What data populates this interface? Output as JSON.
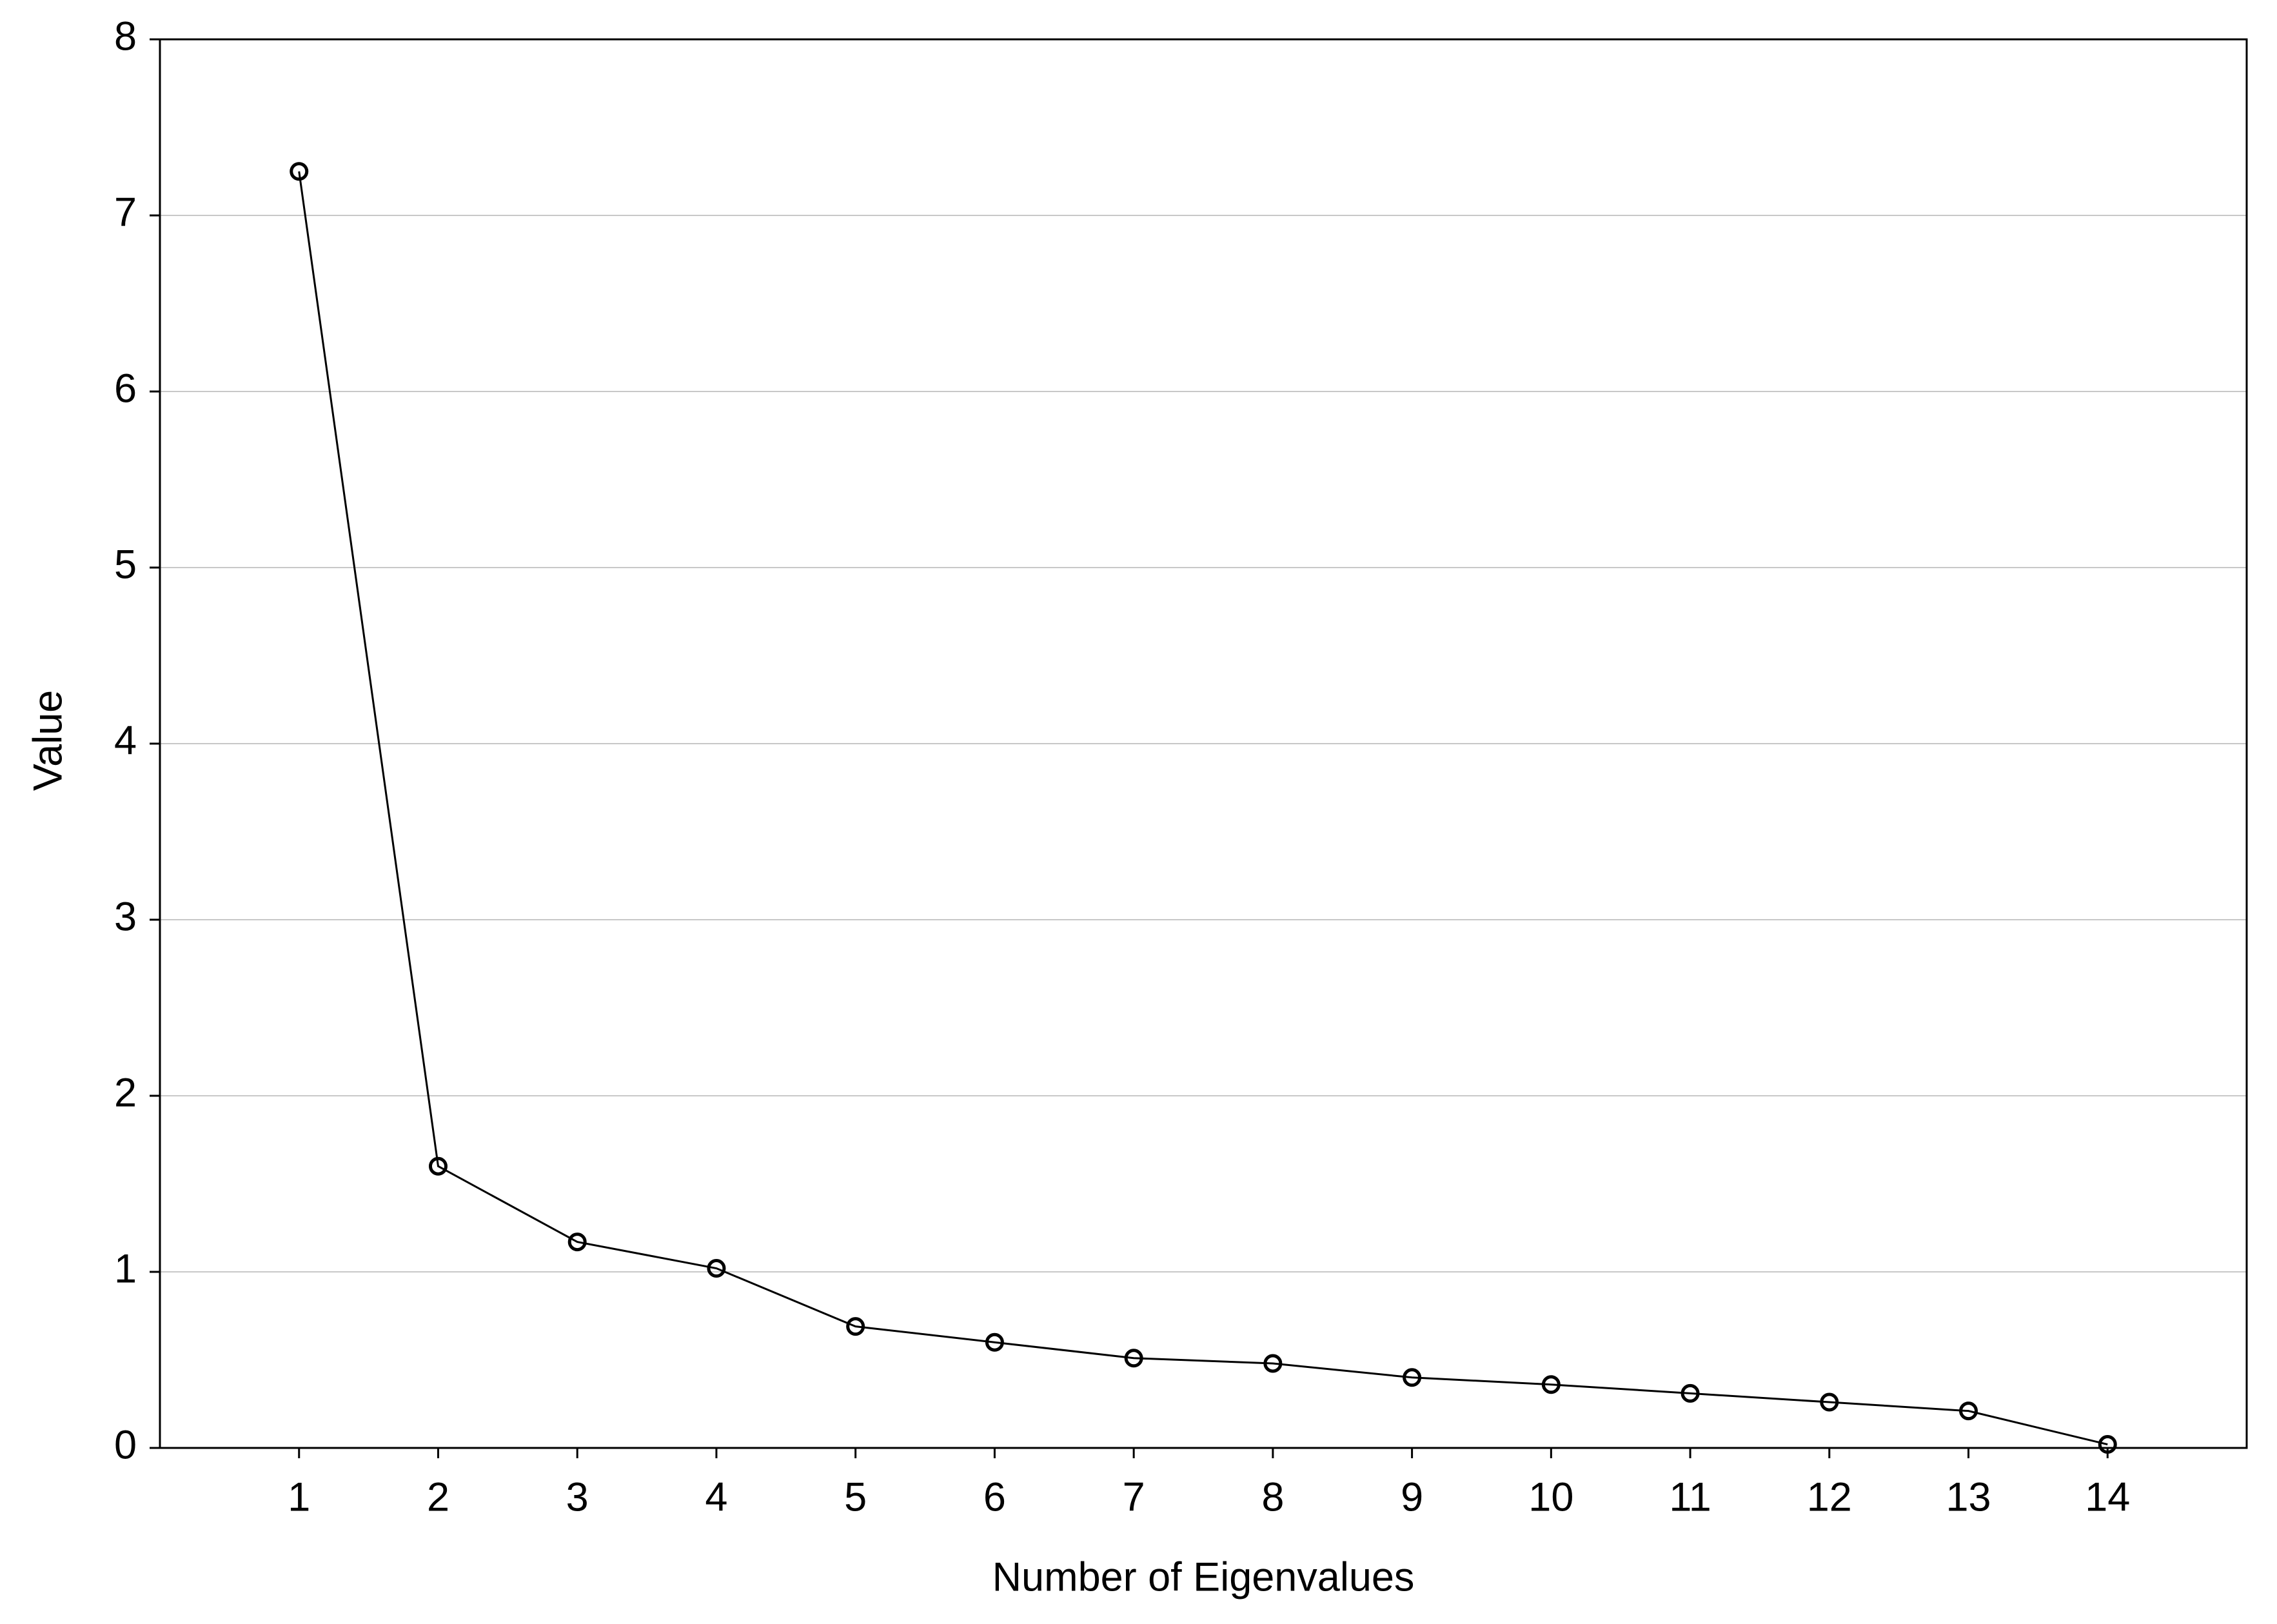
{
  "chart_data": {
    "type": "line",
    "x_label": "Number of Eigenvalues",
    "y_label": "Value",
    "x": [
      1,
      2,
      3,
      4,
      5,
      6,
      7,
      8,
      9,
      10,
      11,
      12,
      13,
      14
    ],
    "values": [
      7.25,
      1.6,
      1.17,
      1.02,
      0.69,
      0.6,
      0.51,
      0.48,
      0.4,
      0.36,
      0.31,
      0.26,
      0.21,
      0.02
    ],
    "color": "#000000",
    "xlim": [
      0,
      15
    ],
    "xticks": [
      1,
      2,
      3,
      4,
      5,
      6,
      7,
      8,
      9,
      10,
      11,
      12,
      13,
      14
    ],
    "ylim": [
      0,
      8
    ],
    "yticks": [
      0,
      1,
      2,
      3,
      4,
      5,
      6,
      7,
      8
    ],
    "grid": true
  }
}
